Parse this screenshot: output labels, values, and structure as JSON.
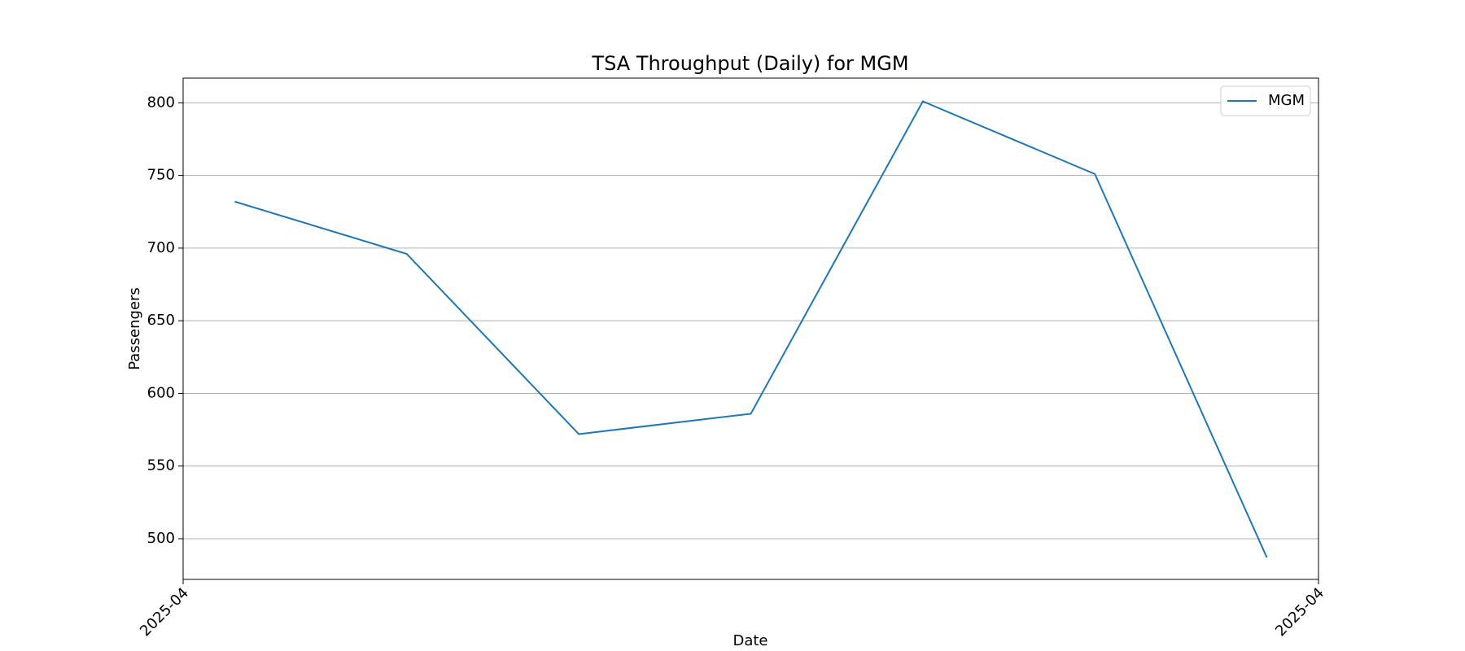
{
  "chart_data": {
    "type": "line",
    "title": "TSA Throughput (Daily) for MGM",
    "x_label": "Date",
    "y_label": "Passengers",
    "x": [
      0.3,
      1.3,
      2.3,
      3.3,
      4.3,
      5.3,
      6.3
    ],
    "series": [
      {
        "name": "MGM",
        "color": "#1f77b4",
        "values": [
          732,
          696,
          572,
          586,
          801,
          751,
          487
        ]
      }
    ],
    "xlim": [
      0,
      6.6
    ],
    "xticks": [
      {
        "value": 0,
        "label": "2025-04"
      },
      {
        "value": 6.6,
        "label": "2025-04"
      }
    ],
    "ylim": [
      472,
      817
    ],
    "yticks": [
      500,
      550,
      600,
      650,
      700,
      750,
      800
    ],
    "grid": true,
    "legend": "upper right"
  }
}
